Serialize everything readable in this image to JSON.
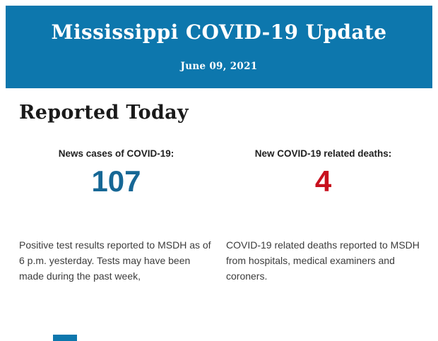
{
  "banner": {
    "title": "Mississippi COVID-19 Update",
    "date": "June 09, 2021",
    "background_color": "#0d77ad",
    "text_color": "#ffffff"
  },
  "section": {
    "heading": "Reported Today"
  },
  "stats": [
    {
      "label": "News cases of COVID-19:",
      "value": "107",
      "value_color": "#166795",
      "description": "Positive test results reported to MSDH as of 6 p.m. yesterday. Tests may have been made during the past week,"
    },
    {
      "label": "New COVID-19 related deaths:",
      "value": "4",
      "value_color": "#c8101e",
      "description": "COVID-19 related deaths reported to MSDH from hospitals, medical examiners and coroners."
    }
  ]
}
